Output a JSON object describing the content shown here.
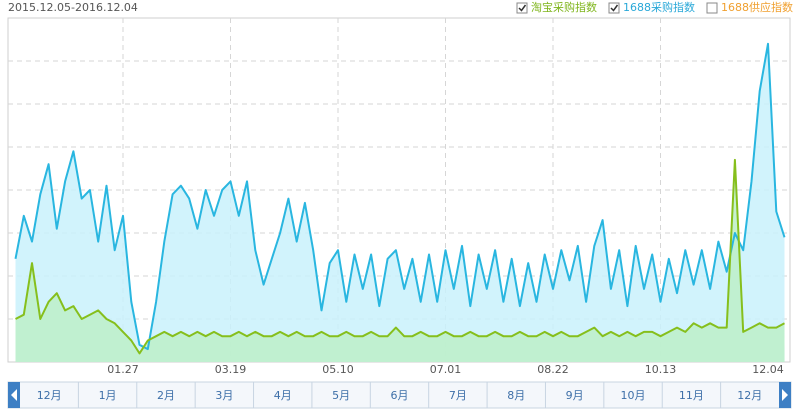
{
  "chart_data": {
    "type": "line",
    "title": "2015.12.05-2016.12.04",
    "legend": [
      {
        "label": "淘宝采购指数",
        "color": "#7fb51c",
        "checked": true
      },
      {
        "label": "1688采购指数",
        "color": "#29a8d8",
        "checked": true
      },
      {
        "label": "1688供应指数",
        "color": "#f0a030",
        "checked": false
      }
    ],
    "categories": [
      null,
      null,
      null,
      null,
      null,
      null,
      null,
      null,
      null,
      null,
      null,
      null,
      null,
      "01.27",
      null,
      null,
      null,
      null,
      null,
      null,
      null,
      null,
      null,
      null,
      null,
      null,
      "03.19",
      null,
      null,
      null,
      null,
      null,
      null,
      null,
      null,
      null,
      null,
      null,
      null,
      "05.10",
      null,
      null,
      null,
      null,
      null,
      null,
      null,
      null,
      null,
      null,
      null,
      null,
      "07.01",
      null,
      null,
      null,
      null,
      null,
      null,
      null,
      null,
      null,
      null,
      null,
      null,
      "08.22",
      null,
      null,
      null,
      null,
      null,
      null,
      null,
      null,
      null,
      null,
      null,
      null,
      "10.13",
      null,
      null,
      null,
      null,
      null,
      null,
      null,
      null,
      null,
      null,
      null,
      null,
      "12.04",
      null,
      null
    ],
    "series": [
      {
        "color": "#29b6e0",
        "fill": "#c9f1fb",
        "values": [
          2.4,
          3.4,
          2.8,
          3.9,
          4.6,
          3.1,
          4.2,
          4.9,
          3.8,
          4.0,
          2.8,
          4.1,
          2.6,
          3.4,
          1.4,
          0.4,
          0.3,
          1.4,
          2.8,
          3.9,
          4.1,
          3.8,
          3.1,
          4.0,
          3.4,
          4.0,
          4.2,
          3.4,
          4.2,
          2.6,
          1.8,
          2.4,
          3.0,
          3.8,
          2.8,
          3.7,
          2.6,
          1.2,
          2.3,
          2.6,
          1.4,
          2.5,
          1.7,
          2.5,
          1.3,
          2.4,
          2.6,
          1.7,
          2.4,
          1.4,
          2.5,
          1.4,
          2.6,
          1.7,
          2.7,
          1.3,
          2.5,
          1.7,
          2.6,
          1.4,
          2.4,
          1.3,
          2.3,
          1.4,
          2.5,
          1.7,
          2.6,
          1.9,
          2.7,
          1.4,
          2.7,
          3.3,
          1.7,
          2.6,
          1.3,
          2.7,
          1.7,
          2.5,
          1.4,
          2.4,
          1.6,
          2.6,
          1.8,
          2.6,
          1.7,
          2.8,
          2.1,
          3.0,
          2.6,
          4.2,
          6.3,
          7.4,
          3.5,
          2.9
        ]
      },
      {
        "color": "#86bf1c",
        "fill": "#bdeec8",
        "values": [
          1.0,
          1.1,
          2.3,
          1.0,
          1.4,
          1.6,
          1.2,
          1.3,
          1.0,
          1.1,
          1.2,
          1.0,
          0.9,
          0.7,
          0.5,
          0.2,
          0.5,
          0.6,
          0.7,
          0.6,
          0.7,
          0.6,
          0.7,
          0.6,
          0.7,
          0.6,
          0.6,
          0.7,
          0.6,
          0.7,
          0.6,
          0.6,
          0.7,
          0.6,
          0.7,
          0.6,
          0.6,
          0.7,
          0.6,
          0.6,
          0.7,
          0.6,
          0.6,
          0.7,
          0.6,
          0.6,
          0.8,
          0.6,
          0.6,
          0.7,
          0.6,
          0.6,
          0.7,
          0.6,
          0.6,
          0.7,
          0.6,
          0.6,
          0.7,
          0.6,
          0.6,
          0.7,
          0.6,
          0.6,
          0.7,
          0.6,
          0.7,
          0.6,
          0.6,
          0.7,
          0.8,
          0.6,
          0.7,
          0.6,
          0.7,
          0.6,
          0.7,
          0.7,
          0.6,
          0.7,
          0.8,
          0.7,
          0.9,
          0.8,
          0.9,
          0.8,
          0.8,
          4.7,
          0.7,
          0.8,
          0.9,
          0.8,
          0.8,
          0.9
        ]
      }
    ],
    "ylim": [
      0,
      8
    ],
    "grid": true,
    "months": [
      "12月",
      "1月",
      "2月",
      "3月",
      "4月",
      "5月",
      "6月",
      "7月",
      "8月",
      "9月",
      "10月",
      "11月",
      "12月"
    ]
  }
}
